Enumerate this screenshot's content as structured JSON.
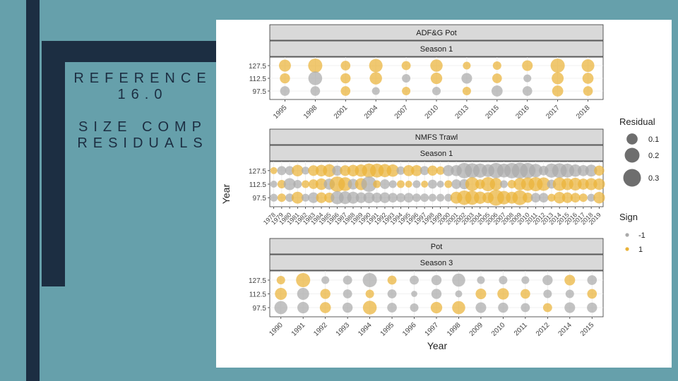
{
  "slide": {
    "title_line1": "REFERENCE 16.0",
    "title_line2": "SIZE COMP RESIDUALS"
  },
  "colors": {
    "positive": "#eab339",
    "negative": "#aaaaaa",
    "strip": "#d9d9d9",
    "background": "#66a0ab",
    "dark": "#1c2e42"
  },
  "chart_data": {
    "type": "scatter",
    "ylabel": "Year",
    "xlabel": "Year",
    "y_categories": [
      "127.5",
      "112.5",
      "97.5"
    ],
    "legend": {
      "residual_title": "Residual",
      "residual_sizes": [
        "0.1",
        "0.2",
        "0.3"
      ],
      "sign_title": "Sign",
      "sign_values": [
        "-1",
        "1"
      ],
      "placement": "right"
    },
    "panels": [
      {
        "fleet": "ADF&G Pot",
        "season": "Season 1",
        "years": [
          "1995",
          "1998",
          "2001",
          "2004",
          "2007",
          "2010",
          "2013",
          "2015",
          "2016",
          "2017",
          "2018"
        ],
        "residuals": [
          [
            0.12,
            0.18,
            0.07,
            0.16,
            0.06,
            0.13,
            0.04,
            0.05,
            0.09,
            0.18,
            0.14
          ],
          [
            0.08,
            -0.17,
            0.08,
            0.13,
            -0.05,
            0.11,
            -0.09,
            0.07,
            -0.04,
            0.12,
            0.1
          ],
          [
            -0.07,
            -0.07,
            0.07,
            -0.04,
            0.05,
            -0.05,
            0.05,
            -0.1,
            -0.07,
            0.1,
            0.07
          ]
        ]
      },
      {
        "fleet": "NMFS Trawl",
        "season": "Season 1",
        "years": [
          "1978",
          "1979",
          "1980",
          "1981",
          "1982",
          "1983",
          "1984",
          "1985",
          "1986",
          "1987",
          "1988",
          "1989",
          "1990",
          "1991",
          "1992",
          "1993",
          "1994",
          "1995",
          "1996",
          "1997",
          "1998",
          "1999",
          "2000",
          "2001",
          "2002",
          "2003",
          "2004",
          "2005",
          "2006",
          "2007",
          "2008",
          "2009",
          "2010",
          "2011",
          "2012",
          "2013",
          "2014",
          "2015",
          "2016",
          "2017",
          "2018",
          "2019"
        ],
        "residuals": [
          [
            0.03,
            -0.06,
            -0.06,
            0.11,
            -0.04,
            0.09,
            0.11,
            0.14,
            -0.08,
            0.09,
            0.11,
            0.13,
            0.18,
            0.17,
            0.15,
            0.13,
            -0.05,
            0.1,
            0.1,
            -0.06,
            0.08,
            0.05,
            -0.1,
            -0.1,
            -0.22,
            -0.2,
            -0.18,
            -0.14,
            -0.22,
            -0.17,
            -0.22,
            -0.24,
            -0.22,
            -0.16,
            -0.07,
            -0.18,
            -0.2,
            -0.17,
            -0.13,
            -0.1,
            -0.12,
            0.08
          ],
          [
            -0.03,
            0.05,
            -0.12,
            -0.05,
            0.04,
            0.07,
            0.11,
            -0.1,
            0.22,
            0.17,
            -0.09,
            0.12,
            -0.22,
            0.04,
            -0.07,
            -0.04,
            0.04,
            0.03,
            -0.04,
            0.03,
            -0.06,
            -0.03,
            0.04,
            -0.07,
            -0.08,
            0.17,
            0.07,
            0.18,
            0.13,
            -0.04,
            0.05,
            0.13,
            0.16,
            0.18,
            0.16,
            -0.06,
            0.16,
            0.12,
            0.14,
            0.1,
            0.12,
            0.11
          ],
          [
            -0.04,
            0.05,
            -0.05,
            0.12,
            -0.04,
            -0.09,
            0.09,
            0.08,
            -0.15,
            -0.14,
            -0.12,
            -0.09,
            -0.1,
            -0.08,
            -0.09,
            -0.07,
            -0.06,
            -0.07,
            -0.05,
            -0.05,
            -0.04,
            -0.04,
            -0.04,
            0.12,
            0.19,
            0.18,
            0.13,
            0.1,
            0.24,
            0.16,
            0.12,
            0.2,
            0.08,
            -0.07,
            -0.07,
            0.04,
            0.11,
            0.09,
            0.07,
            0.05,
            -0.04,
            0.11
          ]
        ]
      },
      {
        "fleet": "Pot",
        "season": "Season 3",
        "years": [
          "1990",
          "1991",
          "1992",
          "1993",
          "1994",
          "1995",
          "1996",
          "1997",
          "1998",
          "2009",
          "2010",
          "2011",
          "2012",
          "2014",
          "2015"
        ],
        "residuals": [
          [
            0.05,
            0.18,
            -0.04,
            -0.06,
            -0.18,
            0.06,
            -0.06,
            -0.08,
            -0.15,
            -0.04,
            -0.05,
            -0.04,
            -0.08,
            0.09,
            -0.07
          ],
          [
            0.12,
            -0.12,
            0.08,
            -0.06,
            0.05,
            -0.06,
            -0.02,
            -0.08,
            -0.03,
            0.09,
            0.11,
            0.07,
            -0.05,
            -0.05,
            0.07
          ],
          [
            -0.15,
            -0.11,
            0.1,
            -0.08,
            0.17,
            -0.07,
            -0.05,
            0.11,
            0.15,
            -0.09,
            -0.08,
            -0.06,
            0.06,
            -0.09,
            -0.08
          ]
        ]
      }
    ]
  }
}
